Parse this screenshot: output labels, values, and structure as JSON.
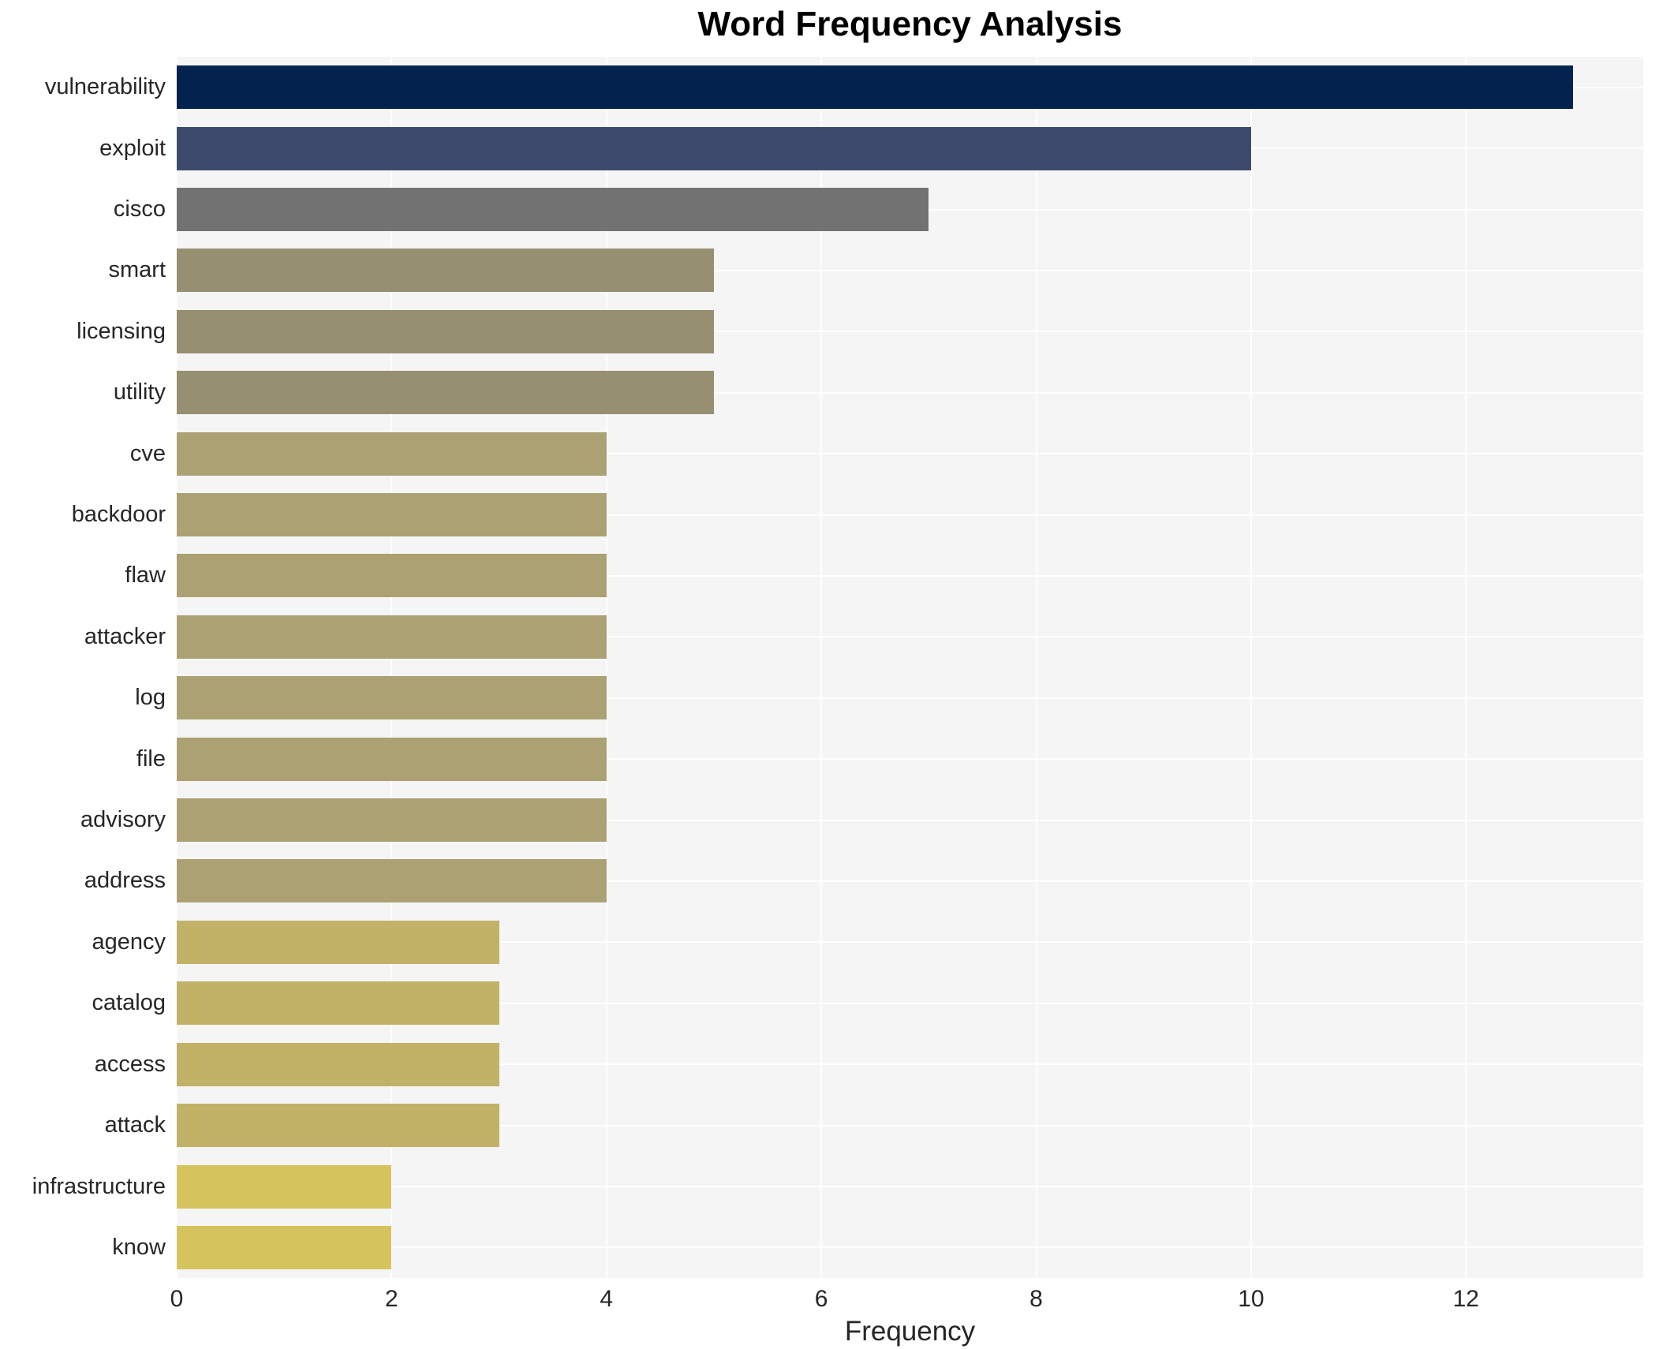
{
  "chart_data": {
    "type": "bar",
    "orientation": "horizontal",
    "title": "Word Frequency Analysis",
    "xlabel": "Frequency",
    "ylabel": "",
    "categories": [
      "vulnerability",
      "exploit",
      "cisco",
      "smart",
      "licensing",
      "utility",
      "cve",
      "backdoor",
      "flaw",
      "attacker",
      "log",
      "file",
      "advisory",
      "address",
      "agency",
      "catalog",
      "access",
      "attack",
      "infrastructure",
      "know"
    ],
    "values": [
      13,
      10,
      7,
      5,
      5,
      5,
      4,
      4,
      4,
      4,
      4,
      4,
      4,
      4,
      3,
      3,
      3,
      3,
      2,
      2
    ],
    "bar_colors": [
      "#02234e",
      "#3e4a6b",
      "#727272",
      "#968f71",
      "#968f71",
      "#968f71",
      "#aba172",
      "#aba172",
      "#aba172",
      "#aba172",
      "#aba172",
      "#aba172",
      "#aba172",
      "#aba172",
      "#c2b268",
      "#c2b268",
      "#c2b268",
      "#c2b268",
      "#d5c35d",
      "#d5c35d"
    ],
    "xticks": [
      0,
      2,
      4,
      6,
      8,
      10,
      12
    ],
    "xlim": [
      0,
      13.65
    ],
    "grid": "on",
    "legend": "none"
  },
  "colors": {
    "figure_bg": "#ffffff",
    "panel_bg": "#f5f5f6",
    "gridline": "#ffffff",
    "title_text": "#000000",
    "tick_text": "#262626"
  }
}
